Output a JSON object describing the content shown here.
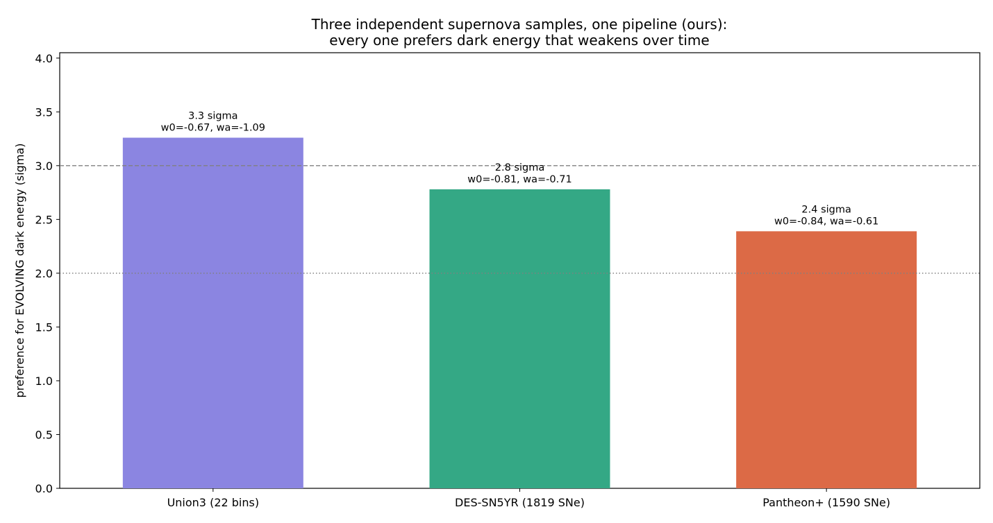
{
  "chart_data": {
    "type": "bar",
    "title_lines": [
      "Three independent supernova samples, one pipeline (ours):",
      "every one prefers dark energy that weakens over time"
    ],
    "xlabel": "",
    "ylabel": "preference for EVOLVING dark energy (sigma)",
    "ylim": [
      0,
      4.05
    ],
    "yticks": [
      "0.0",
      "0.5",
      "1.0",
      "1.5",
      "2.0",
      "2.5",
      "3.0",
      "3.5",
      "4.0"
    ],
    "categories": [
      "Union3 (22 bins)",
      "DES-SN5YR (1819 SNe)",
      "Pantheon+ (1590 SNe)"
    ],
    "values": [
      3.26,
      2.78,
      2.39
    ],
    "bar_colors": [
      "#8b85e1",
      "#34a885",
      "#dc6a46"
    ],
    "annotations": [
      [
        "3.3 sigma",
        "w0=-0.67, wa=-1.09"
      ],
      [
        "2.8 sigma",
        "w0=-0.81, wa=-0.71"
      ],
      [
        "2.4 sigma",
        "w0=-0.84, wa=-0.61"
      ]
    ],
    "reference_lines": [
      {
        "y": 3.0,
        "style": "dashed",
        "color": "#808080"
      },
      {
        "y": 2.0,
        "style": "dotted",
        "color": "#808080"
      }
    ],
    "grid": false,
    "legend": "none"
  }
}
